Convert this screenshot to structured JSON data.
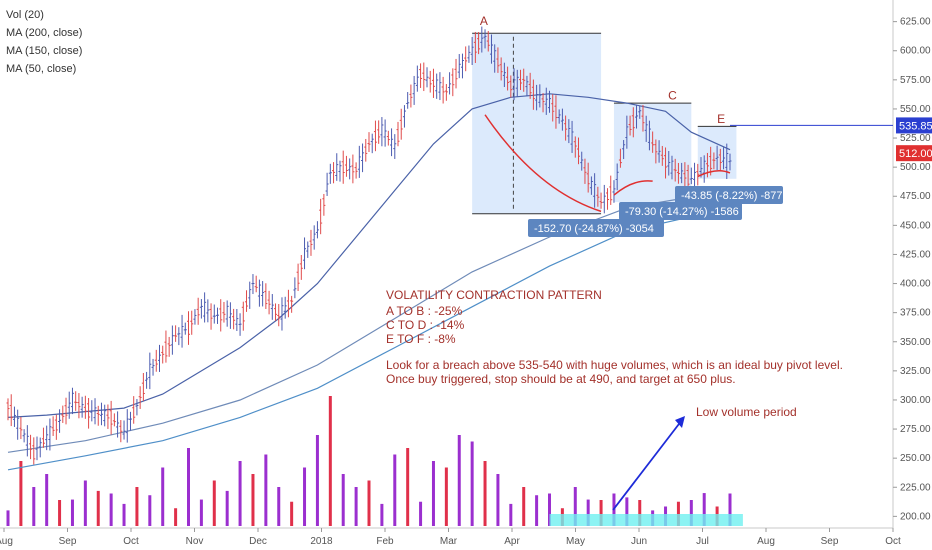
{
  "legend": {
    "items": [
      "Vol (20)",
      "MA (200, close)",
      "MA (150, close)",
      "MA (50, close)"
    ]
  },
  "chart_data": {
    "type": "candlestick",
    "x_ticks": [
      "Aug",
      "Sep",
      "Oct",
      "Nov",
      "Dec",
      "2018",
      "Feb",
      "Mar",
      "Apr",
      "May",
      "Jun",
      "Jul",
      "Aug",
      "Sep",
      "Oct"
    ],
    "y_ticks": [
      200.0,
      225.0,
      250.0,
      275.0,
      300.0,
      325.0,
      350.0,
      375.0,
      400.0,
      425.0,
      450.0,
      475.0,
      500.0,
      525.0,
      550.0,
      575.0,
      600.0,
      625.0
    ],
    "ylim": [
      190,
      635
    ],
    "price_path": [
      [
        0,
        295
      ],
      [
        2,
        255
      ],
      [
        3,
        268
      ],
      [
        4,
        282
      ],
      [
        5,
        300
      ],
      [
        6,
        292
      ],
      [
        7,
        288
      ],
      [
        8,
        285
      ],
      [
        9,
        272
      ],
      [
        10,
        295
      ],
      [
        11,
        325
      ],
      [
        12,
        340
      ],
      [
        13,
        355
      ],
      [
        14,
        362
      ],
      [
        15,
        380
      ],
      [
        16,
        372
      ],
      [
        17,
        375
      ],
      [
        18,
        365
      ],
      [
        19,
        400
      ],
      [
        20,
        388
      ],
      [
        21,
        372
      ],
      [
        22,
        385
      ],
      [
        23,
        425
      ],
      [
        24,
        445
      ],
      [
        25,
        495
      ],
      [
        26,
        500
      ],
      [
        27,
        498
      ],
      [
        28,
        520
      ],
      [
        29,
        532
      ],
      [
        30,
        518
      ],
      [
        31,
        555
      ],
      [
        32,
        580
      ],
      [
        33,
        572
      ],
      [
        34,
        565
      ],
      [
        35,
        585
      ],
      [
        36,
        600
      ],
      [
        37,
        612
      ],
      [
        38,
        590
      ],
      [
        39,
        570
      ],
      [
        40,
        575
      ],
      [
        41,
        560
      ],
      [
        42,
        555
      ],
      [
        43,
        540
      ],
      [
        44,
        520
      ],
      [
        45,
        490
      ],
      [
        46,
        470
      ],
      [
        47,
        480
      ],
      [
        48,
        530
      ],
      [
        49,
        548
      ],
      [
        50,
        520
      ],
      [
        51,
        505
      ],
      [
        52,
        495
      ],
      [
        53,
        490
      ],
      [
        54,
        500
      ],
      [
        55,
        508
      ],
      [
        56,
        505
      ]
    ],
    "ma50": [
      [
        0,
        285
      ],
      [
        3,
        287
      ],
      [
        6,
        290
      ],
      [
        9,
        293
      ],
      [
        12,
        305
      ],
      [
        15,
        325
      ],
      [
        18,
        345
      ],
      [
        21,
        370
      ],
      [
        24,
        400
      ],
      [
        27,
        440
      ],
      [
        30,
        480
      ],
      [
        33,
        520
      ],
      [
        36,
        550
      ],
      [
        39,
        560
      ],
      [
        42,
        563
      ],
      [
        45,
        560
      ],
      [
        48,
        555
      ],
      [
        51,
        548
      ],
      [
        53,
        530
      ],
      [
        56,
        515
      ]
    ],
    "ma150": [
      [
        0,
        255
      ],
      [
        6,
        265
      ],
      [
        12,
        280
      ],
      [
        18,
        300
      ],
      [
        24,
        330
      ],
      [
        30,
        370
      ],
      [
        36,
        410
      ],
      [
        42,
        440
      ],
      [
        48,
        465
      ],
      [
        56,
        480
      ]
    ],
    "ma200": [
      [
        0,
        240
      ],
      [
        6,
        252
      ],
      [
        12,
        265
      ],
      [
        18,
        285
      ],
      [
        24,
        310
      ],
      [
        30,
        345
      ],
      [
        36,
        380
      ],
      [
        42,
        415
      ],
      [
        48,
        445
      ],
      [
        56,
        465
      ]
    ],
    "volume_bars": [
      [
        1,
        0.5
      ],
      [
        2,
        0.3
      ],
      [
        3,
        0.4
      ],
      [
        4,
        0.2
      ],
      [
        6,
        0.35
      ],
      [
        8,
        0.25
      ],
      [
        10,
        0.3
      ],
      [
        12,
        0.45
      ],
      [
        14,
        0.6
      ],
      [
        16,
        0.35
      ],
      [
        18,
        0.5
      ],
      [
        19,
        0.4
      ],
      [
        20,
        0.55
      ],
      [
        21,
        0.3
      ],
      [
        23,
        0.45
      ],
      [
        24,
        0.7
      ],
      [
        25,
        1.0
      ],
      [
        26,
        0.4
      ],
      [
        27,
        0.3
      ],
      [
        28,
        0.35
      ],
      [
        30,
        0.55
      ],
      [
        31,
        0.6
      ],
      [
        33,
        0.5
      ],
      [
        34,
        0.45
      ],
      [
        35,
        0.7
      ],
      [
        36,
        0.65
      ],
      [
        37,
        0.5
      ],
      [
        38,
        0.4
      ],
      [
        40,
        0.3
      ],
      [
        42,
        0.25
      ],
      [
        44,
        0.3
      ],
      [
        46,
        0.2
      ],
      [
        47,
        0.25
      ],
      [
        49,
        0.2
      ],
      [
        51,
        0.15
      ],
      [
        53,
        0.2
      ],
      [
        55,
        0.15
      ],
      [
        56,
        0.25
      ]
    ],
    "current_price": "535.85",
    "marker_price": "512.00",
    "labels": {
      "A": "A",
      "C": "C",
      "E": "E"
    },
    "measurements": [
      "-152.70 (-24.87%) -3054",
      "-79.30 (-14.27%) -1586",
      "-43.85 (-8.22%) -877"
    ],
    "annotation": {
      "title": "VOLATILITY CONTRACTION PATTERN",
      "lines": [
        "A TO B :  -25%",
        "C TO D :  -14%",
        "E TO F :  -8%"
      ],
      "note1": "Look for a breach above 535-540 with huge volumes, which is an ideal buy pivot level.",
      "note2": "Once buy triggered, stop should be at 490, and target at 650 plus."
    },
    "low_volume_label": "Low volume period",
    "colors": {
      "up": "#4b5bb0",
      "down": "#e04a4a",
      "ma50": "#4a62a8",
      "ma150": "#6f8bb8",
      "ma200": "#4f8fc8",
      "vol_up": "#9b2fcf",
      "vol_down": "#e0304a",
      "highlight": "#d6e6fb",
      "low_vol": "#6ff0f0",
      "price_tag": "#2b3fd0",
      "marker_tag": "#e03030",
      "measure_tag": "#5d86c0",
      "annot": "#a3312b"
    }
  }
}
